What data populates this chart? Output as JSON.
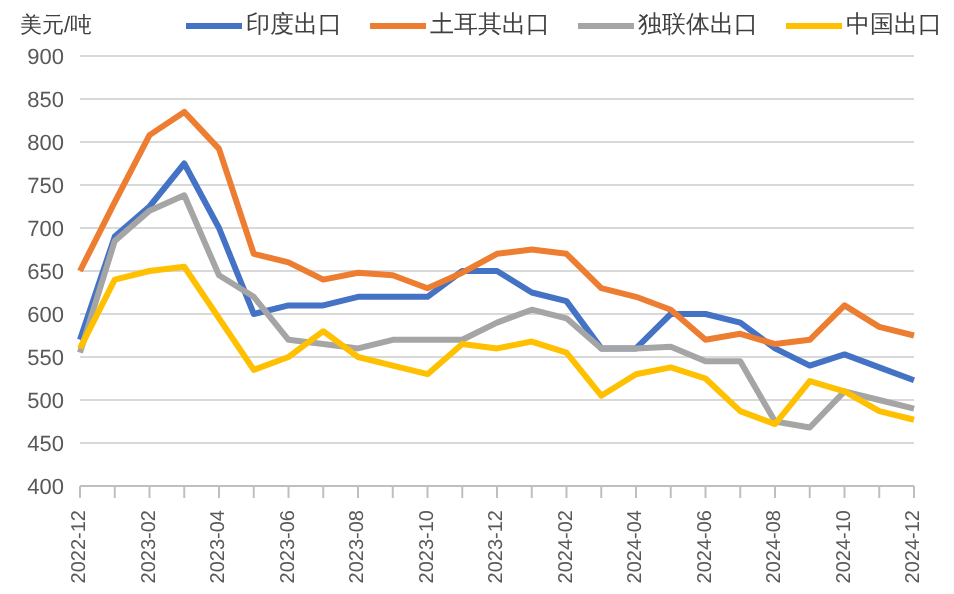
{
  "chart_data": {
    "type": "line",
    "ylabel": "美元/吨",
    "categories": [
      "2022-12",
      null,
      "2023-02",
      null,
      "2023-04",
      null,
      "2023-06",
      null,
      "2023-08",
      null,
      "2023-10",
      null,
      "2023-12",
      null,
      "2024-02",
      null,
      "2024-04",
      null,
      "2024-06",
      null,
      "2024-08",
      null,
      "2024-10",
      null,
      "2024-12"
    ],
    "series": [
      {
        "name": "印度出口",
        "color": "#4472c4",
        "values": [
          570,
          690,
          725,
          775,
          700,
          600,
          610,
          610,
          620,
          620,
          620,
          650,
          650,
          625,
          615,
          560,
          560,
          600,
          600,
          590,
          560,
          540,
          553,
          538,
          523
        ]
      },
      {
        "name": "土耳其出口",
        "color": "#ed7d31",
        "values": [
          650,
          730,
          808,
          835,
          792,
          670,
          660,
          640,
          648,
          645,
          630,
          648,
          670,
          675,
          670,
          630,
          620,
          605,
          570,
          577,
          565,
          570,
          610,
          585,
          575
        ]
      },
      {
        "name": "独联体出口",
        "color": "#a5a5a5",
        "values": [
          555,
          685,
          720,
          738,
          645,
          620,
          570,
          565,
          560,
          570,
          570,
          570,
          590,
          605,
          595,
          560,
          560,
          562,
          545,
          545,
          475,
          468,
          510,
          500,
          490
        ]
      },
      {
        "name": "中国出口",
        "color": "#ffc000",
        "values": [
          560,
          640,
          650,
          655,
          595,
          535,
          550,
          580,
          550,
          540,
          530,
          565,
          560,
          568,
          555,
          505,
          530,
          538,
          525,
          487,
          472,
          522,
          510,
          487,
          477
        ]
      }
    ],
    "ylim": [
      400,
      900
    ],
    "yticks": [
      400,
      450,
      500,
      550,
      600,
      650,
      700,
      750,
      800,
      850,
      900
    ],
    "grid": "y",
    "legend": "top",
    "marker": "none",
    "line_style": "solid"
  }
}
